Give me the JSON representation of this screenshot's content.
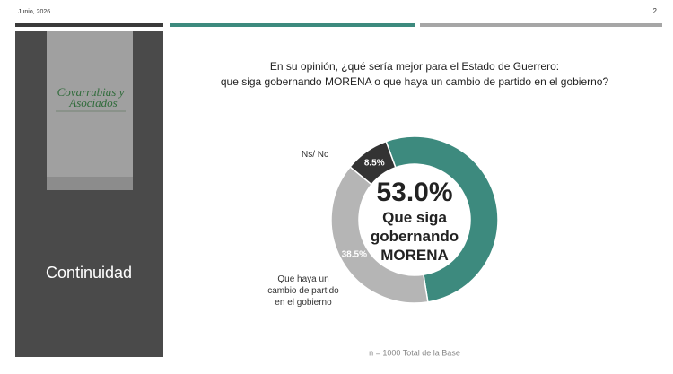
{
  "header": {
    "date": "Junio, 2026",
    "page": "2"
  },
  "sidebar": {
    "logo": [
      "Covarrubias y",
      "Asociados"
    ],
    "label": "Continuidad"
  },
  "chart_data": {
    "type": "donut",
    "title": [
      "En su opinión, ¿qué sería mejor para el Estado de Guerrero:",
      "que siga gobernando MORENA o que haya un cambio de partido en el gobierno?"
    ],
    "categories": [
      "Que siga gobernando MORENA",
      "Que haya un cambio de partido en el gobierno",
      "Ns/ Nc"
    ],
    "values": [
      53.0,
      38.5,
      8.5
    ],
    "value_labels": [
      "53.0%",
      "38.5%",
      "8.5%"
    ],
    "colors": [
      "#3d8a7e",
      "#b5b5b5",
      "#333333"
    ],
    "note": "n = 1000 Total de la Base"
  }
}
